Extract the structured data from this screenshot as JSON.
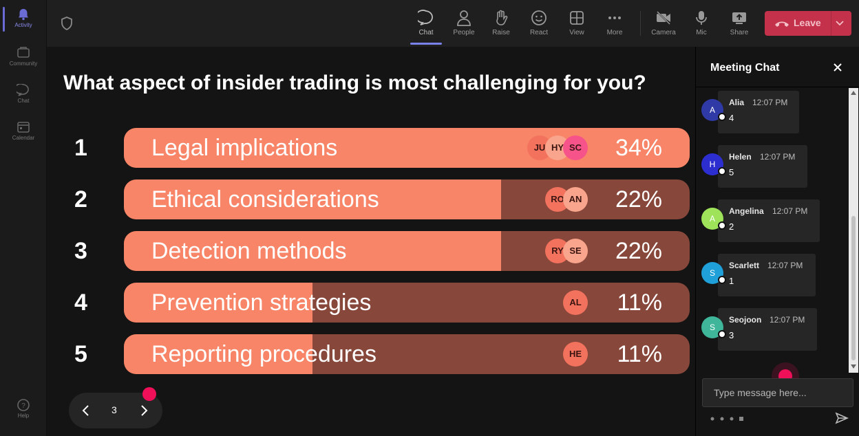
{
  "rail": {
    "items": [
      {
        "label": "Activity",
        "icon": "bell-icon"
      },
      {
        "label": "Community",
        "icon": "community-icon"
      },
      {
        "label": "Chat",
        "icon": "chat-icon"
      },
      {
        "label": "Calendar",
        "icon": "calendar-icon"
      },
      {
        "label": "Help",
        "icon": "help-icon"
      }
    ]
  },
  "toolbar": {
    "shield_icon": "shield-icon",
    "items": [
      {
        "label": "Chat",
        "icon": "chat-icon",
        "active": true
      },
      {
        "label": "People",
        "icon": "people-icon"
      },
      {
        "label": "Raise",
        "icon": "raise-hand-icon"
      },
      {
        "label": "React",
        "icon": "smile-icon"
      },
      {
        "label": "View",
        "icon": "grid-icon"
      },
      {
        "label": "More",
        "icon": "more-icon"
      },
      {
        "label": "Camera",
        "icon": "camera-off-icon"
      },
      {
        "label": "Mic",
        "icon": "mic-icon"
      },
      {
        "label": "Share",
        "icon": "share-icon"
      }
    ],
    "leave_label": "Leave",
    "leave_color": "#c4314b"
  },
  "poll": {
    "question": "What aspect of insider trading is most challenging for you?",
    "fill_color": "#f88567",
    "track_color": "#87473a",
    "options": [
      {
        "number": "1",
        "label": "Legal implications",
        "percent_label": "34%",
        "share": 1.0,
        "voters": [
          {
            "initials": "JU",
            "color": "#f2725e"
          },
          {
            "initials": "HY",
            "color": "#f9a48c"
          },
          {
            "initials": "SC",
            "color": "#f7538b"
          }
        ]
      },
      {
        "number": "2",
        "label": "Ethical considerations",
        "percent_label": "22%",
        "share": 0.667,
        "voters": [
          {
            "initials": "RO",
            "color": "#f2725e"
          },
          {
            "initials": "AN",
            "color": "#f9a48c"
          }
        ]
      },
      {
        "number": "3",
        "label": "Detection methods",
        "percent_label": "22%",
        "share": 0.667,
        "voters": [
          {
            "initials": "RY",
            "color": "#f2725e"
          },
          {
            "initials": "SE",
            "color": "#f9a48c"
          }
        ]
      },
      {
        "number": "4",
        "label": "Prevention strategies",
        "percent_label": "11%",
        "share": 0.333,
        "voters": [
          {
            "initials": "AL",
            "color": "#f2725e"
          }
        ]
      },
      {
        "number": "5",
        "label": "Reporting procedures",
        "percent_label": "11%",
        "share": 0.333,
        "voters": [
          {
            "initials": "HE",
            "color": "#f2725e"
          }
        ]
      }
    ]
  },
  "pager": {
    "page": "3"
  },
  "chat": {
    "title": "Meeting Chat",
    "messages": [
      {
        "initial": "A",
        "name": "Alia",
        "time": "12:07 PM",
        "text": "4",
        "color": "#2f3aa6"
      },
      {
        "initial": "H",
        "name": "Helen",
        "time": "12:07 PM",
        "text": "5",
        "color": "#2d2ed0"
      },
      {
        "initial": "A",
        "name": "Angelina",
        "time": "12:07 PM",
        "text": "2",
        "color": "#9ee35a"
      },
      {
        "initial": "S",
        "name": "Scarlett",
        "time": "12:07 PM",
        "text": "1",
        "color": "#1fa0d9"
      },
      {
        "initial": "S",
        "name": "Seojoon",
        "time": "12:07 PM",
        "text": "3",
        "color": "#3fb59a"
      }
    ],
    "input_placeholder": "Type message here..."
  }
}
